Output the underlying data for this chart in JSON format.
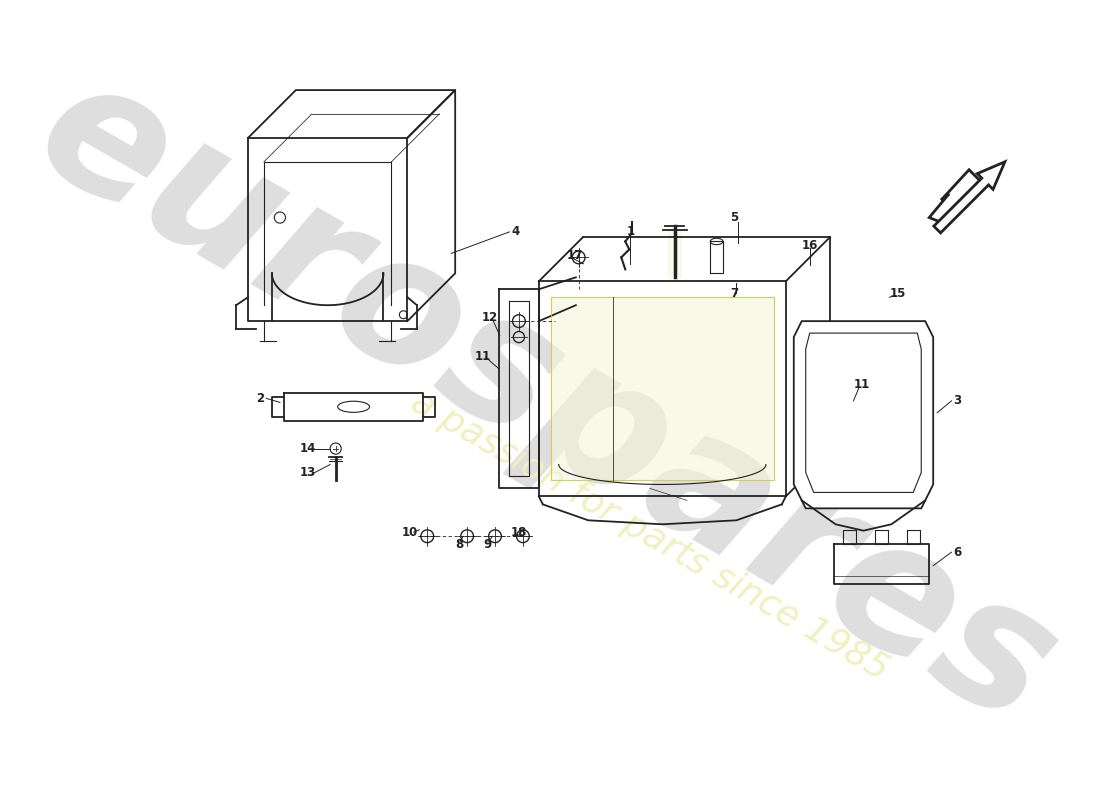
{
  "bg": "#ffffff",
  "lc": "#222222",
  "wm1_color": "#dedede",
  "wm2_color": "#f0f0c0",
  "label_fs": 8.5,
  "lw_part": 1.3,
  "lw_thin": 0.8,
  "lw_label": 0.7
}
